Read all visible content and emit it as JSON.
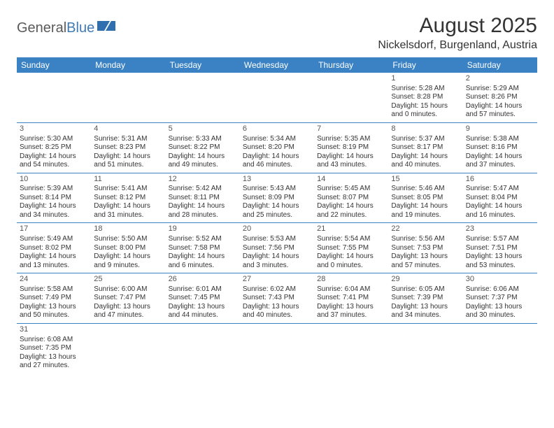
{
  "logo": {
    "general": "General",
    "blue": "Blue"
  },
  "title": "August 2025",
  "location": "Nickelsdorf, Burgenland, Austria",
  "colors": {
    "header_bg": "#3b82c4",
    "header_text": "#ffffff",
    "border": "#3b82c4",
    "text": "#333333",
    "logo_gray": "#5a5a5a",
    "logo_blue": "#3f7ab5"
  },
  "dayNames": [
    "Sunday",
    "Monday",
    "Tuesday",
    "Wednesday",
    "Thursday",
    "Friday",
    "Saturday"
  ],
  "weeks": [
    [
      null,
      null,
      null,
      null,
      null,
      {
        "n": "1",
        "rise": "5:28 AM",
        "set": "8:28 PM",
        "dlh": "15",
        "dlm": "0"
      },
      {
        "n": "2",
        "rise": "5:29 AM",
        "set": "8:26 PM",
        "dlh": "14",
        "dlm": "57"
      }
    ],
    [
      {
        "n": "3",
        "rise": "5:30 AM",
        "set": "8:25 PM",
        "dlh": "14",
        "dlm": "54"
      },
      {
        "n": "4",
        "rise": "5:31 AM",
        "set": "8:23 PM",
        "dlh": "14",
        "dlm": "51"
      },
      {
        "n": "5",
        "rise": "5:33 AM",
        "set": "8:22 PM",
        "dlh": "14",
        "dlm": "49"
      },
      {
        "n": "6",
        "rise": "5:34 AM",
        "set": "8:20 PM",
        "dlh": "14",
        "dlm": "46"
      },
      {
        "n": "7",
        "rise": "5:35 AM",
        "set": "8:19 PM",
        "dlh": "14",
        "dlm": "43"
      },
      {
        "n": "8",
        "rise": "5:37 AM",
        "set": "8:17 PM",
        "dlh": "14",
        "dlm": "40"
      },
      {
        "n": "9",
        "rise": "5:38 AM",
        "set": "8:16 PM",
        "dlh": "14",
        "dlm": "37"
      }
    ],
    [
      {
        "n": "10",
        "rise": "5:39 AM",
        "set": "8:14 PM",
        "dlh": "14",
        "dlm": "34"
      },
      {
        "n": "11",
        "rise": "5:41 AM",
        "set": "8:12 PM",
        "dlh": "14",
        "dlm": "31"
      },
      {
        "n": "12",
        "rise": "5:42 AM",
        "set": "8:11 PM",
        "dlh": "14",
        "dlm": "28"
      },
      {
        "n": "13",
        "rise": "5:43 AM",
        "set": "8:09 PM",
        "dlh": "14",
        "dlm": "25"
      },
      {
        "n": "14",
        "rise": "5:45 AM",
        "set": "8:07 PM",
        "dlh": "14",
        "dlm": "22"
      },
      {
        "n": "15",
        "rise": "5:46 AM",
        "set": "8:05 PM",
        "dlh": "14",
        "dlm": "19"
      },
      {
        "n": "16",
        "rise": "5:47 AM",
        "set": "8:04 PM",
        "dlh": "14",
        "dlm": "16"
      }
    ],
    [
      {
        "n": "17",
        "rise": "5:49 AM",
        "set": "8:02 PM",
        "dlh": "14",
        "dlm": "13"
      },
      {
        "n": "18",
        "rise": "5:50 AM",
        "set": "8:00 PM",
        "dlh": "14",
        "dlm": "9"
      },
      {
        "n": "19",
        "rise": "5:52 AM",
        "set": "7:58 PM",
        "dlh": "14",
        "dlm": "6"
      },
      {
        "n": "20",
        "rise": "5:53 AM",
        "set": "7:56 PM",
        "dlh": "14",
        "dlm": "3"
      },
      {
        "n": "21",
        "rise": "5:54 AM",
        "set": "7:55 PM",
        "dlh": "14",
        "dlm": "0"
      },
      {
        "n": "22",
        "rise": "5:56 AM",
        "set": "7:53 PM",
        "dlh": "13",
        "dlm": "57"
      },
      {
        "n": "23",
        "rise": "5:57 AM",
        "set": "7:51 PM",
        "dlh": "13",
        "dlm": "53"
      }
    ],
    [
      {
        "n": "24",
        "rise": "5:58 AM",
        "set": "7:49 PM",
        "dlh": "13",
        "dlm": "50"
      },
      {
        "n": "25",
        "rise": "6:00 AM",
        "set": "7:47 PM",
        "dlh": "13",
        "dlm": "47"
      },
      {
        "n": "26",
        "rise": "6:01 AM",
        "set": "7:45 PM",
        "dlh": "13",
        "dlm": "44"
      },
      {
        "n": "27",
        "rise": "6:02 AM",
        "set": "7:43 PM",
        "dlh": "13",
        "dlm": "40"
      },
      {
        "n": "28",
        "rise": "6:04 AM",
        "set": "7:41 PM",
        "dlh": "13",
        "dlm": "37"
      },
      {
        "n": "29",
        "rise": "6:05 AM",
        "set": "7:39 PM",
        "dlh": "13",
        "dlm": "34"
      },
      {
        "n": "30",
        "rise": "6:06 AM",
        "set": "7:37 PM",
        "dlh": "13",
        "dlm": "30"
      }
    ],
    [
      {
        "n": "31",
        "rise": "6:08 AM",
        "set": "7:35 PM",
        "dlh": "13",
        "dlm": "27"
      },
      null,
      null,
      null,
      null,
      null,
      null
    ]
  ],
  "labels": {
    "sunrise": "Sunrise:",
    "sunset": "Sunset:",
    "daylight_prefix": "Daylight:",
    "hours_word": "hours",
    "and_word": "and",
    "minutes_word": "minutes."
  }
}
